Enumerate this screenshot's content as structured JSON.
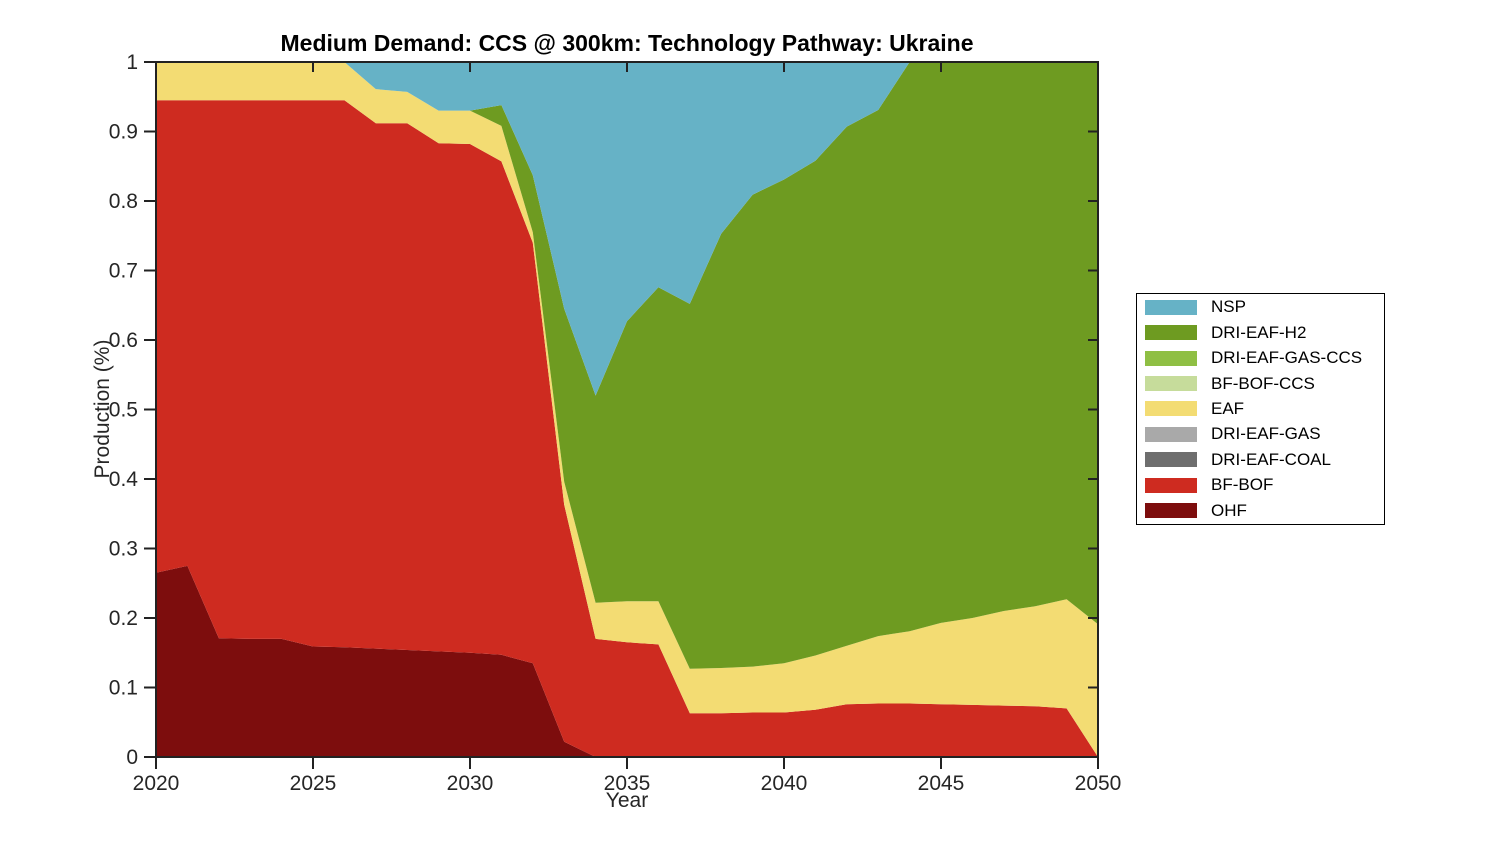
{
  "chart": {
    "title": "Medium Demand: CCS @ 300km: Technology Pathway: Ukraine",
    "xlabel": "Year",
    "ylabel": "Production (%)"
  },
  "chart_data": {
    "type": "area",
    "stacked": true,
    "title": "Medium Demand: CCS @ 300km: Technology Pathway: Ukraine",
    "xlabel": "Year",
    "ylabel": "Production (%)",
    "xlim": [
      2020,
      2050
    ],
    "ylim": [
      0,
      1
    ],
    "grid": false,
    "legend_position": "right-outside",
    "x_ticks": [
      2020,
      2025,
      2030,
      2035,
      2040,
      2045,
      2050
    ],
    "x_tick_labels": [
      "2020",
      "2025",
      "2030",
      "2035",
      "2040",
      "2045",
      "2050"
    ],
    "y_ticks": [
      0,
      0.1,
      0.2,
      0.3,
      0.4,
      0.5,
      0.6,
      0.7,
      0.8,
      0.9,
      1
    ],
    "y_tick_labels": [
      "0",
      "0.1",
      "0.2",
      "0.3",
      "0.4",
      "0.5",
      "0.6",
      "0.7",
      "0.8",
      "0.9",
      "1"
    ],
    "x": [
      2020,
      2021,
      2022,
      2023,
      2024,
      2025,
      2026,
      2027,
      2028,
      2029,
      2030,
      2031,
      2032,
      2033,
      2034,
      2035,
      2036,
      2037,
      2038,
      2039,
      2040,
      2041,
      2042,
      2043,
      2044,
      2045,
      2046,
      2047,
      2048,
      2049,
      2050
    ],
    "stack_order_note": "series listed bottom-to-top; legend displays reverse order",
    "series": [
      {
        "name": "OHF",
        "color": "#7D0D0D",
        "values": [
          0.265,
          0.275,
          0.171,
          0.17,
          0.17,
          0.159,
          0.158,
          0.156,
          0.154,
          0.152,
          0.15,
          0.147,
          0.135,
          0.022,
          0,
          0,
          0,
          0,
          0,
          0,
          0,
          0,
          0,
          0,
          0,
          0,
          0,
          0,
          0,
          0,
          0
        ]
      },
      {
        "name": "BF-BOF",
        "color": "#CE2B20",
        "values": [
          0.68,
          0.67,
          0.774,
          0.775,
          0.775,
          0.786,
          0.787,
          0.756,
          0.758,
          0.731,
          0.732,
          0.71,
          0.605,
          0.341,
          0.17,
          0.165,
          0.162,
          0.063,
          0.063,
          0.064,
          0.064,
          0.068,
          0.076,
          0.077,
          0.077,
          0.076,
          0.075,
          0.074,
          0.073,
          0.07,
          0
        ]
      },
      {
        "name": "DRI-EAF-COAL",
        "color": "#6E6E6E",
        "values": [
          0,
          0,
          0,
          0,
          0,
          0,
          0,
          0,
          0,
          0,
          0,
          0,
          0,
          0,
          0,
          0,
          0,
          0,
          0,
          0,
          0,
          0,
          0,
          0,
          0,
          0,
          0,
          0,
          0,
          0,
          0
        ]
      },
      {
        "name": "DRI-EAF-GAS",
        "color": "#A9A9A9",
        "values": [
          0,
          0,
          0,
          0,
          0,
          0,
          0,
          0,
          0,
          0,
          0,
          0,
          0,
          0,
          0,
          0,
          0,
          0,
          0,
          0,
          0,
          0,
          0,
          0,
          0,
          0,
          0,
          0,
          0,
          0,
          0
        ]
      },
      {
        "name": "EAF",
        "color": "#F3DC73",
        "values": [
          0.055,
          0.055,
          0.055,
          0.055,
          0.055,
          0.055,
          0.055,
          0.049,
          0.045,
          0.047,
          0.048,
          0.051,
          0.015,
          0.033,
          0.052,
          0.059,
          0.062,
          0.064,
          0.065,
          0.066,
          0.071,
          0.078,
          0.084,
          0.097,
          0.104,
          0.117,
          0.125,
          0.136,
          0.144,
          0.157,
          0.191
        ]
      },
      {
        "name": "BF-BOF-CCS",
        "color": "#C6DC9B",
        "values": [
          0,
          0,
          0,
          0,
          0,
          0,
          0,
          0,
          0,
          0,
          0,
          0,
          0,
          0,
          0,
          0,
          0,
          0,
          0,
          0,
          0,
          0,
          0,
          0,
          0,
          0,
          0,
          0,
          0,
          0,
          0
        ]
      },
      {
        "name": "DRI-EAF-GAS-CCS",
        "color": "#8FBF44",
        "values": [
          0,
          0,
          0,
          0,
          0,
          0,
          0,
          0,
          0,
          0,
          0,
          0,
          0,
          0,
          0,
          0,
          0,
          0,
          0,
          0,
          0,
          0,
          0,
          0,
          0,
          0,
          0,
          0,
          0,
          0,
          0
        ]
      },
      {
        "name": "DRI-EAF-H2",
        "color": "#6E9B21",
        "values": [
          0,
          0,
          0,
          0,
          0,
          0,
          0,
          0,
          0,
          0,
          0,
          0.03,
          0.082,
          0.249,
          0.298,
          0.403,
          0.452,
          0.525,
          0.625,
          0.679,
          0.696,
          0.712,
          0.747,
          0.757,
          0.819,
          0.807,
          0.8,
          0.79,
          0.783,
          0.773,
          0.809
        ]
      },
      {
        "name": "NSP",
        "color": "#66B2C6",
        "values": [
          0,
          0,
          0,
          0,
          0,
          0,
          0,
          0.039,
          0.043,
          0.07,
          0.07,
          0.062,
          0.163,
          0.355,
          0.48,
          0.373,
          0.324,
          0.348,
          0.247,
          0.191,
          0.169,
          0.142,
          0.093,
          0.069,
          0,
          0,
          0,
          0,
          0,
          0,
          0
        ]
      }
    ]
  },
  "axis_style": {
    "line_color": "#222222",
    "text_color": "#262626"
  }
}
